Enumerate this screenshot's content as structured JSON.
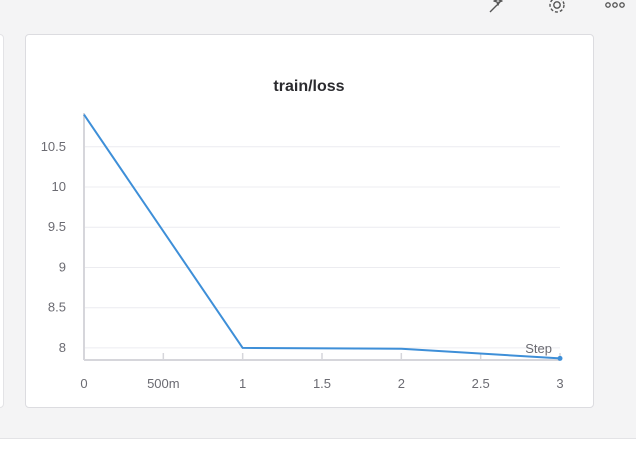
{
  "toolbar": {
    "icons": [
      "magic-sparkle-icon",
      "gear-icon",
      "more-options-icon"
    ]
  },
  "chart_data": {
    "type": "line",
    "title": "train/loss",
    "xlabel": "Step",
    "ylabel": "",
    "x": [
      0,
      1,
      2,
      3
    ],
    "series": [
      {
        "values": [
          10.9,
          8.0,
          7.99,
          7.87
        ]
      }
    ],
    "xlim": [
      0,
      3
    ],
    "ylim": [
      7.85,
      10.92
    ],
    "xticks": [
      0,
      0.5,
      1,
      1.5,
      2,
      2.5,
      3
    ],
    "xtick_labels": [
      "0",
      "500m",
      "1",
      "1.5",
      "2",
      "2.5",
      "3"
    ],
    "yticks": [
      8,
      8.5,
      9,
      9.5,
      10,
      10.5
    ],
    "ytick_labels": [
      "8",
      "8.5",
      "9",
      "9.5",
      "10",
      "10.5"
    ],
    "grid": true,
    "line_color": "#3e8fd8",
    "grid_color": "#ececf0",
    "axis_color": "#d6d6db"
  }
}
